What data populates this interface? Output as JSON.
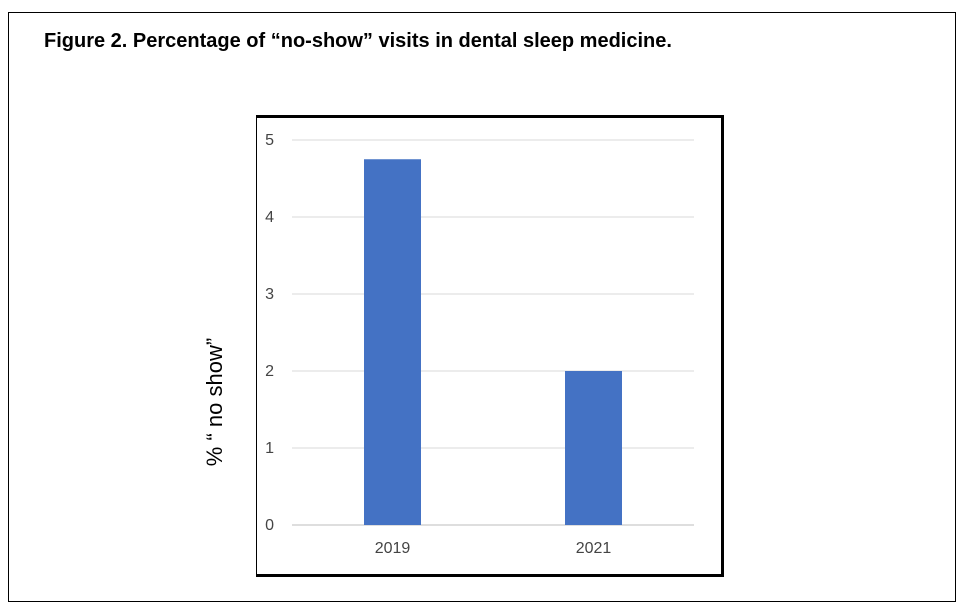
{
  "caption": "Figure 2. Percentage of “no-show” visits in dental sleep medicine.",
  "chart_data": {
    "type": "bar",
    "title": "",
    "xlabel": "",
    "ylabel": "% “  no show”",
    "categories": [
      "2019",
      "2021"
    ],
    "values": [
      4.75,
      2.0
    ],
    "ylim": [
      0,
      5
    ],
    "yticks": [
      0,
      1,
      2,
      3,
      4,
      5
    ],
    "grid": true,
    "legend": "none",
    "bar_color": "#4472c4",
    "grid_color": "#d9d9d9"
  }
}
